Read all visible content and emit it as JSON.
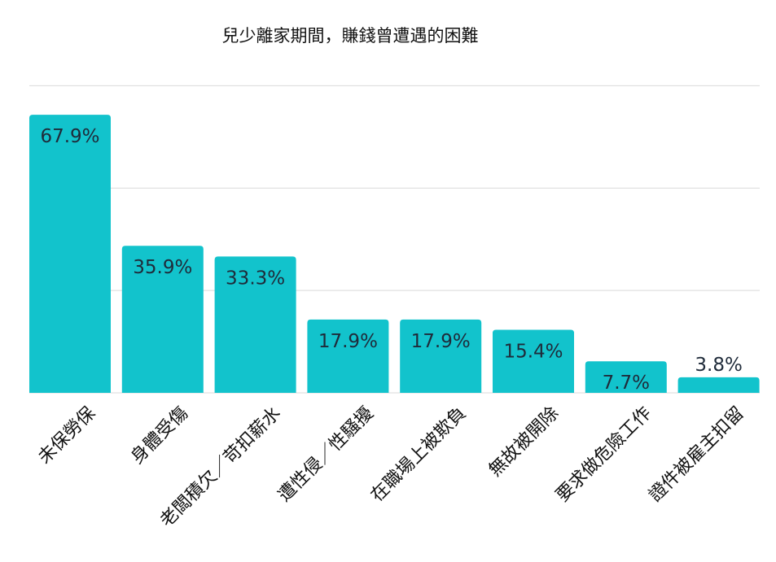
{
  "chart_data": {
    "type": "bar",
    "title": "兒少離家期間，賺錢曾遭遇的困難",
    "categories": [
      "未保勞保",
      "身體受傷",
      "老闆積欠／苛扣薪水",
      "遭性侵／性騷擾",
      "在職場上被欺負",
      "無故被開除",
      "要求做危險工作",
      "證件被雇主扣留"
    ],
    "values": [
      67.9,
      35.9,
      33.3,
      17.9,
      17.9,
      15.4,
      7.7,
      3.8
    ],
    "value_labels": [
      "67.9%",
      "35.9%",
      "33.3%",
      "17.9%",
      "17.9%",
      "15.4%",
      "7.7%",
      "3.8%"
    ],
    "unit": "%",
    "ylim": [
      0,
      75
    ],
    "grid": true,
    "xlabel": "",
    "ylabel": "",
    "colors": {
      "bar": "#12c3cc",
      "grid": "#d9d9d9",
      "value_label": "#1f2b3a"
    }
  }
}
